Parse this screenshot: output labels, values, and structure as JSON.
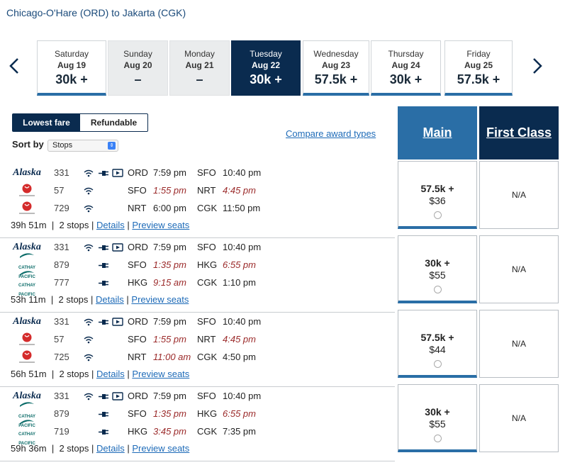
{
  "route": "Chicago-O'Hare (ORD) to Jakarta (CGK)",
  "nav": {
    "prev_icon": "chevron-left-icon",
    "next_icon": "chevron-right-icon"
  },
  "dates": [
    {
      "day": "Saturday",
      "date": "Aug 19",
      "price": "30k +",
      "state": "avail"
    },
    {
      "day": "Sunday",
      "date": "Aug 20",
      "price": "–",
      "state": "nofare"
    },
    {
      "day": "Monday",
      "date": "Aug 21",
      "price": "–",
      "state": "nofare"
    },
    {
      "day": "Tuesday",
      "date": "Aug 22",
      "price": "30k +",
      "state": "selected"
    },
    {
      "day": "Wednesday",
      "date": "Aug 23",
      "price": "57.5k +",
      "state": "avail"
    },
    {
      "day": "Thursday",
      "date": "Aug 24",
      "price": "30k +",
      "state": "avail"
    },
    {
      "day": "Friday",
      "date": "Aug 25",
      "price": "57.5k +",
      "state": "avail"
    }
  ],
  "fare_toggle": {
    "lowest": "Lowest fare",
    "refundable": "Refundable"
  },
  "sort": {
    "label": "Sort by",
    "value": "Stops"
  },
  "compare_link": "Compare award types",
  "cabins": {
    "main": "Main",
    "first": "First Class"
  },
  "colors": {
    "selected_date": "#0a2b4f",
    "main_cabin": "#2a6ea6",
    "delay_time": "#9b2a2a",
    "link": "#1e6bb8"
  },
  "flights": [
    {
      "segments": [
        {
          "airline": "Alaska",
          "flight": "331",
          "amenities": [
            "wifi",
            "power",
            "video"
          ],
          "orig": "ORD",
          "dep": "7:59 pm",
          "dest": "SFO",
          "arr": "10:40 pm",
          "dep_changed": false,
          "arr_changed": false
        },
        {
          "airline": "JAPAN AIRLINES",
          "flight": "57",
          "amenities": [
            "wifi"
          ],
          "orig": "SFO",
          "dep": "1:55 pm",
          "dest": "NRT",
          "arr": "4:45 pm",
          "dep_changed": true,
          "arr_changed": true
        },
        {
          "airline": "JAPAN AIRLINES",
          "flight": "729",
          "amenities": [
            "wifi"
          ],
          "orig": "NRT",
          "dep": "6:00 pm",
          "dest": "CGK",
          "arr": "11:50 pm",
          "dep_changed": false,
          "arr_changed": false
        }
      ],
      "duration": "39h 51m",
      "stops": "2 stops",
      "details": "Details",
      "preview": "Preview seats",
      "main_points": "57.5k +",
      "main_cash": "$36",
      "first": "N/A"
    },
    {
      "segments": [
        {
          "airline": "Alaska",
          "flight": "331",
          "amenities": [
            "wifi",
            "power",
            "video"
          ],
          "orig": "ORD",
          "dep": "7:59 pm",
          "dest": "SFO",
          "arr": "10:40 pm",
          "dep_changed": false,
          "arr_changed": false
        },
        {
          "airline": "CATHAY PACIFIC",
          "flight": "879",
          "amenities": [
            "power"
          ],
          "orig": "SFO",
          "dep": "1:35 pm",
          "dest": "HKG",
          "arr": "6:55 pm",
          "dep_changed": true,
          "arr_changed": true
        },
        {
          "airline": "CATHAY PACIFIC",
          "flight": "777",
          "amenities": [
            "power"
          ],
          "orig": "HKG",
          "dep": "9:15 am",
          "dest": "CGK",
          "arr": "1:10 pm",
          "dep_changed": true,
          "arr_changed": false
        }
      ],
      "duration": "53h 11m",
      "stops": "2 stops",
      "details": "Details",
      "preview": "Preview seats",
      "main_points": "30k +",
      "main_cash": "$55",
      "first": "N/A"
    },
    {
      "segments": [
        {
          "airline": "Alaska",
          "flight": "331",
          "amenities": [
            "wifi",
            "power",
            "video"
          ],
          "orig": "ORD",
          "dep": "7:59 pm",
          "dest": "SFO",
          "arr": "10:40 pm",
          "dep_changed": false,
          "arr_changed": false
        },
        {
          "airline": "JAPAN AIRLINES",
          "flight": "57",
          "amenities": [
            "wifi"
          ],
          "orig": "SFO",
          "dep": "1:55 pm",
          "dest": "NRT",
          "arr": "4:45 pm",
          "dep_changed": true,
          "arr_changed": true
        },
        {
          "airline": "JAPAN AIRLINES",
          "flight": "725",
          "amenities": [
            "wifi"
          ],
          "orig": "NRT",
          "dep": "11:00 am",
          "dest": "CGK",
          "arr": "4:50 pm",
          "dep_changed": true,
          "arr_changed": false
        }
      ],
      "duration": "56h 51m",
      "stops": "2 stops",
      "details": "Details",
      "preview": "Preview seats",
      "main_points": "57.5k +",
      "main_cash": "$44",
      "first": "N/A"
    },
    {
      "segments": [
        {
          "airline": "Alaska",
          "flight": "331",
          "amenities": [
            "wifi",
            "power",
            "video"
          ],
          "orig": "ORD",
          "dep": "7:59 pm",
          "dest": "SFO",
          "arr": "10:40 pm",
          "dep_changed": false,
          "arr_changed": false
        },
        {
          "airline": "CATHAY PACIFIC",
          "flight": "879",
          "amenities": [
            "power"
          ],
          "orig": "SFO",
          "dep": "1:35 pm",
          "dest": "HKG",
          "arr": "6:55 pm",
          "dep_changed": true,
          "arr_changed": true
        },
        {
          "airline": "CATHAY PACIFIC",
          "flight": "719",
          "amenities": [
            "power"
          ],
          "orig": "HKG",
          "dep": "3:45 pm",
          "dest": "CGK",
          "arr": "7:35 pm",
          "dep_changed": true,
          "arr_changed": false
        }
      ],
      "duration": "59h 36m",
      "stops": "2 stops",
      "details": "Details",
      "preview": "Preview seats",
      "main_points": "30k +",
      "main_cash": "$55",
      "first": "N/A"
    }
  ]
}
